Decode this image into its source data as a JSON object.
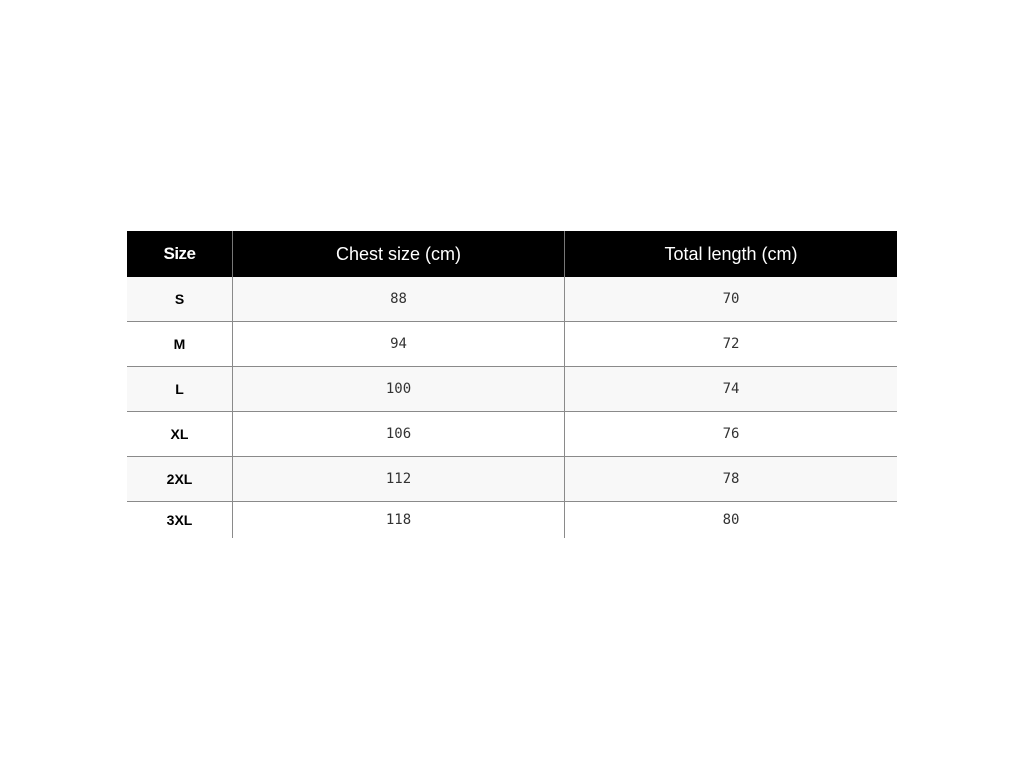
{
  "table": {
    "headers": [
      "Size",
      "Chest size (cm)",
      "Total length (cm)"
    ],
    "rows": [
      [
        "S",
        "88",
        "70"
      ],
      [
        "M",
        "94",
        "72"
      ],
      [
        "L",
        "100",
        "74"
      ],
      [
        "XL",
        "106",
        "76"
      ],
      [
        "2XL",
        "112",
        "78"
      ],
      [
        "3XL",
        "118",
        "80"
      ]
    ]
  }
}
